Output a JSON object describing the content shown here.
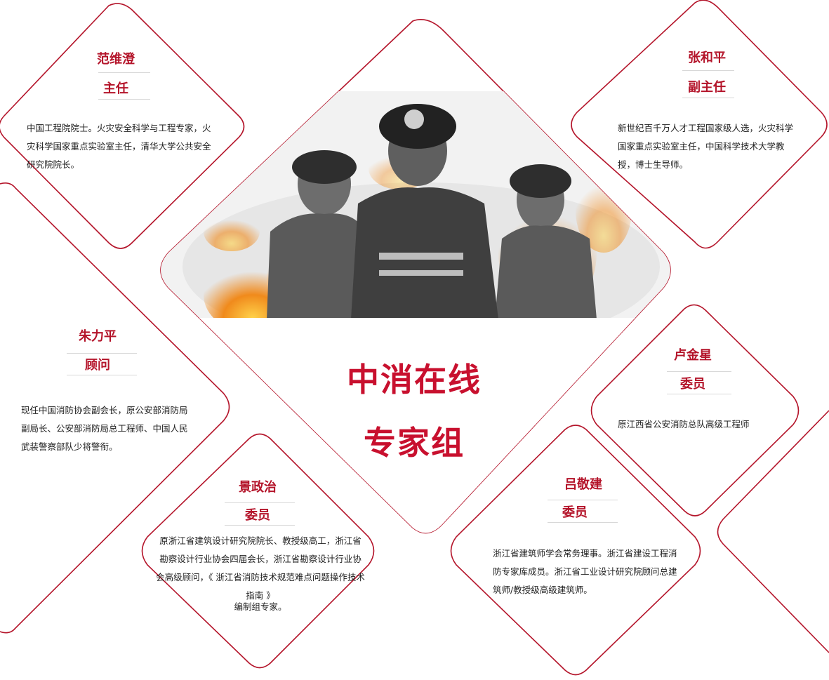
{
  "brand": {
    "line1": "中消在线",
    "line2": "专家组"
  },
  "experts": [
    {
      "name": "范维澄",
      "role": "主任",
      "desc": "中国工程院院士。火灾安全科学与工程专家，火灾科学国家重点实验室主任，清华大学公共安全研究院院长。"
    },
    {
      "name": "张和平",
      "role": "副主任",
      "desc": "新世纪百千万人才工程国家级人选，火灾科学国家重点实验室主任，中国科学技术大学教授，博士生导师。"
    },
    {
      "name": "朱力平",
      "role": "顾问",
      "desc": "现任中国消防协会副会长，原公安部消防局副局长、公安部消防局总工程师、中国人民武装警察部队少将警衔。"
    },
    {
      "name": "卢金星",
      "role": "委员",
      "desc": "原江西省公安消防总队高级工程师"
    },
    {
      "name": "景政治",
      "role": "委员",
      "desc": "原浙江省建筑设计研究院院长、教授级高工，浙江省勘察设计行业协会四届会长，浙江省勘察设计行业协会高级顾问，《 浙江省消防技术规范难点问题操作技术指南 》",
      "desc2": "编制组专家。"
    },
    {
      "name": "吕敬建",
      "role": "委员",
      "desc": "浙江省建筑师学会常务理事。浙江省建设工程消防专家库成员。浙江省工业设计研究院顾问总建筑师/教授级高级建筑师。"
    }
  ],
  "colors": {
    "accent": "#c8102e",
    "border": "#b4142a"
  }
}
